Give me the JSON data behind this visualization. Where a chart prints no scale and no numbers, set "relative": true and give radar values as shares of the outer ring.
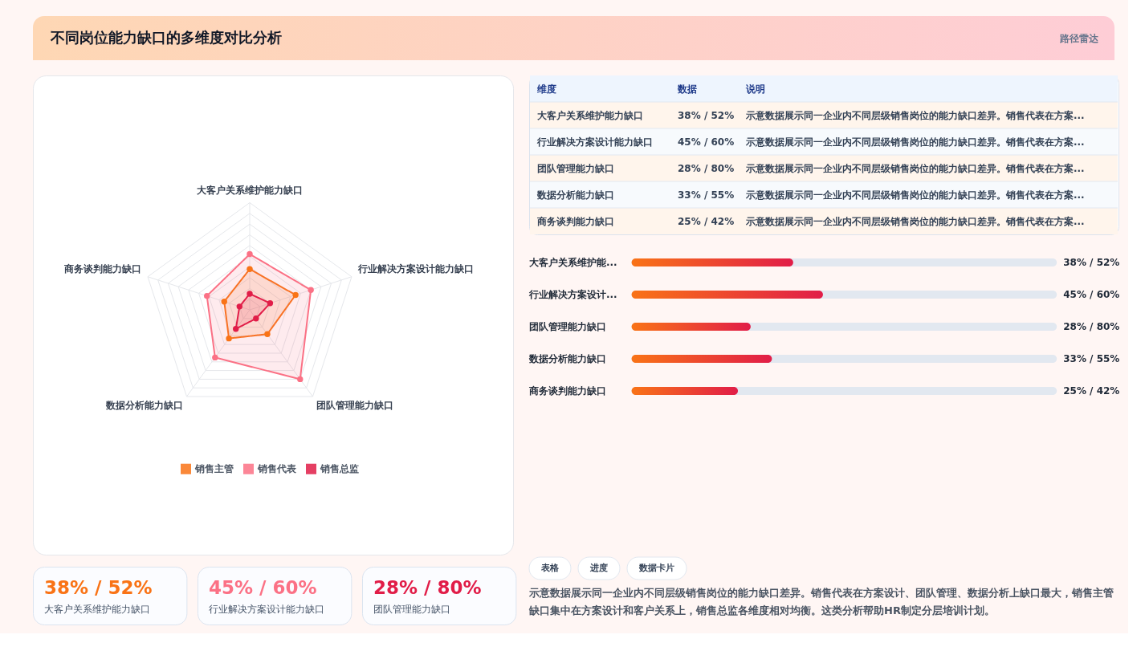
{
  "chart_data": [
    {
      "type": "radar",
      "title": "不同岗位能力缺口的多维度对比分析",
      "categories": [
        "大客户关系维护能力缺口",
        "行业解决方案设计能力缺口",
        "团队管理能力缺口",
        "数据分析能力缺口",
        "商务谈判能力缺口"
      ],
      "relative": true,
      "grid": true,
      "legend": "bottom",
      "marker": "circle",
      "series": [
        {
          "name": "销售主管",
          "color": "#f97316",
          "values": [
            0.38,
            0.45,
            0.28,
            0.33,
            0.25
          ]
        },
        {
          "name": "销售代表",
          "color": "#fb7185",
          "values": [
            0.52,
            0.6,
            0.8,
            0.55,
            0.42
          ]
        },
        {
          "name": "销售总监",
          "color": "#e11d48",
          "values": [
            0.15,
            0.2,
            0.1,
            0.22,
            0.1
          ]
        }
      ]
    },
    {
      "type": "other",
      "title": "路径雷达",
      "categories": [
        "大客户关系维护能力缺口",
        "行业解决方案设计能力缺口",
        "团队管理能力缺口",
        "数据分析能力缺口",
        "商务谈判能力缺口"
      ],
      "value_labels": [
        "38% / 52%",
        "45% / 60%",
        "28% / 80%",
        "33% / 55%",
        "25% / 42%"
      ],
      "annotations": [
        "维度",
        "数据",
        "说明",
        "示意数据展示同一企业内不同层级销售岗位的能力缺口差异。销售代表在方案...",
        "示意数据展示同一企业内不同层级销售岗位的能力缺口差异。销售代表在方案...",
        "示意数据展示同一企业内不同层级销售岗位的能力缺口差异。销售代表在方案...",
        "示意数据展示同一企业内不同层级销售岗位的能力缺口差异。销售代表在方案...",
        "示意数据展示同一企业内不同层级销售岗位的能力缺口差异。销售代表在方案..."
      ]
    },
    {
      "type": "bar",
      "orientation": "horizontal",
      "categories": [
        "大客户关系维护能...",
        "行业解决方案设计...",
        "团队管理能力缺口",
        "数据分析能力缺口",
        "商务谈判能力缺口"
      ],
      "values": [
        38,
        45,
        28,
        33,
        25
      ],
      "value_labels": [
        "38% / 52%",
        "45% / 60%",
        "28% / 80%",
        "33% / 55%",
        "25% / 42%"
      ],
      "xlim": [
        0,
        100
      ],
      "color": "#e11d48",
      "tick_labels": "y"
    },
    {
      "type": "other",
      "categories": [
        "大客户关系维护能力缺口",
        "行业解决方案设计能力缺口",
        "团队管理能力缺口"
      ],
      "value_labels": [
        "38% / 52%",
        "45% / 60%",
        "28% / 80%"
      ]
    },
    {
      "type": "other",
      "categories": [
        "表格",
        "进度",
        "数据卡片"
      ],
      "annotations": [
        "示意数据展示同一企业内不同层级销售岗位的能力缺口差异。销售代表在方案设计、团队管理、数据分析上缺口最大，销售主管缺口集中在方案设计和客户关系上，销售总监各维度相对均衡。这类分析帮助HR制定分层培训计划。"
      ]
    }
  ]
}
